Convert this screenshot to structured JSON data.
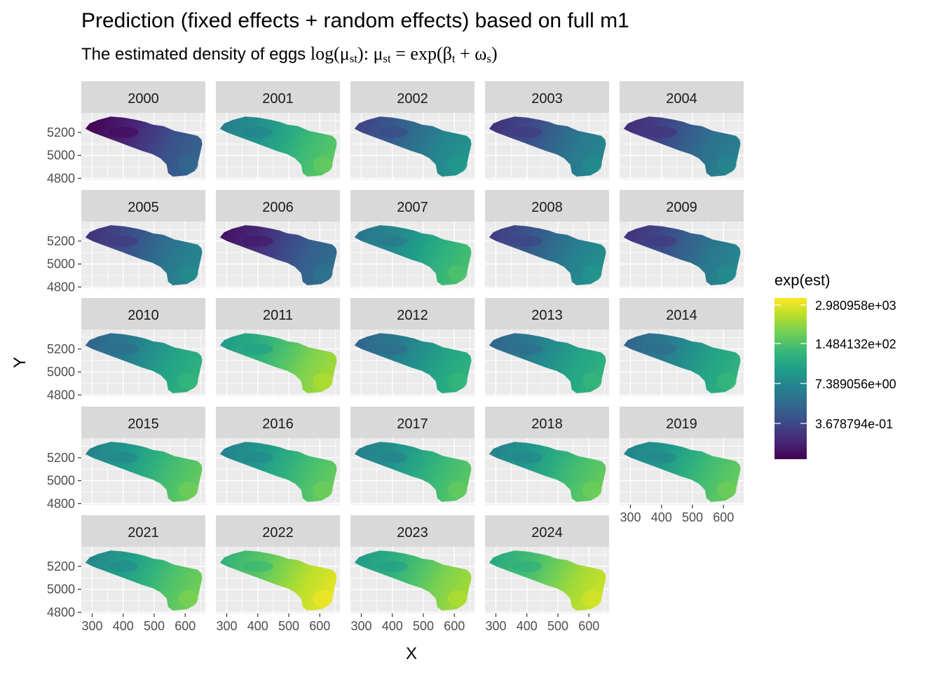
{
  "chart_data": {
    "type": "heatmap",
    "title": "Prediction (fixed effects +  random effects) based on full m1",
    "subtitle": {
      "text": "The estimated density of eggs ",
      "math_log": "log(",
      "mu": "μ",
      "sub_st": "st",
      "close_colon": "): ",
      "eq": " = exp(",
      "beta": "β",
      "sub_t": "t",
      "plus": " + ",
      "omega": "ω",
      "sub_s": "s",
      "close": ")"
    },
    "xlabel": "X",
    "ylabel": "Y",
    "x_ticks": [
      300,
      400,
      500,
      600
    ],
    "y_ticks": [
      4800,
      5000,
      5200
    ],
    "xlim": [
      265,
      665
    ],
    "ylim": [
      4790,
      5370
    ],
    "facets": [
      {
        "label": "2000",
        "level": 0.18
      },
      {
        "label": "2001",
        "level": 0.6
      },
      {
        "label": "2002",
        "level": 0.38
      },
      {
        "label": "2003",
        "level": 0.32
      },
      {
        "label": "2004",
        "level": 0.3
      },
      {
        "label": "2005",
        "level": 0.32
      },
      {
        "label": "2006",
        "level": 0.22
      },
      {
        "label": "2007",
        "level": 0.56
      },
      {
        "label": "2008",
        "level": 0.36
      },
      {
        "label": "2009",
        "level": 0.32
      },
      {
        "label": "2010",
        "level": 0.5
      },
      {
        "label": "2011",
        "level": 0.72
      },
      {
        "label": "2012",
        "level": 0.5
      },
      {
        "label": "2013",
        "level": 0.5
      },
      {
        "label": "2014",
        "level": 0.5
      },
      {
        "label": "2015",
        "level": 0.62
      },
      {
        "label": "2016",
        "level": 0.62
      },
      {
        "label": "2017",
        "level": 0.6
      },
      {
        "label": "2018",
        "level": 0.62
      },
      {
        "label": "2019",
        "level": 0.62
      },
      {
        "label": "2021",
        "level": 0.64
      },
      {
        "label": "2022",
        "level": 0.82
      },
      {
        "label": "2023",
        "level": 0.72
      },
      {
        "label": "2024",
        "level": 0.78
      }
    ],
    "legend": {
      "title": "exp(est)",
      "placement": "right",
      "labels": [
        "2.980958e+03",
        "1.484132e+02",
        "7.389056e+00",
        "3.678794e-01"
      ],
      "colormap": "viridis",
      "colors": [
        "#440154",
        "#482878",
        "#3e4989",
        "#31688e",
        "#26828e",
        "#1f9e89",
        "#35b779",
        "#6ece58",
        "#b5de2b",
        "#fde725"
      ]
    },
    "grid": true,
    "panel_background": "#ebebeb",
    "strip_background": "#d9d9d9"
  }
}
